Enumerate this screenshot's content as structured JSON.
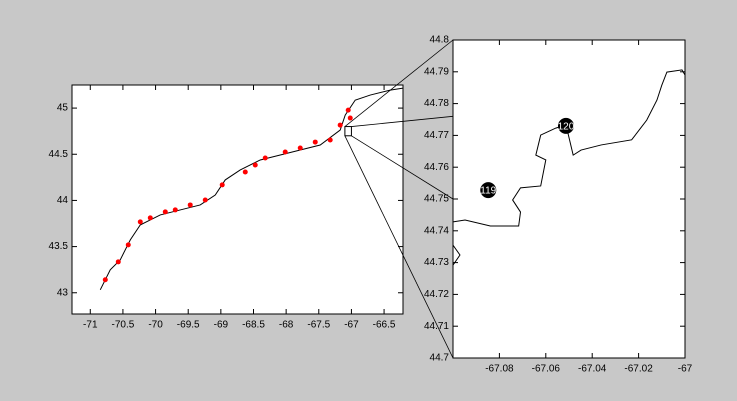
{
  "chart_data": [
    {
      "type": "line",
      "xlim": [
        -71.28,
        -66.21
      ],
      "ylim": [
        42.77,
        45.25
      ],
      "xticks": [
        -71,
        -70.5,
        -70,
        -69.5,
        -69,
        -68.5,
        -68,
        -67.5,
        -67,
        -66.5
      ],
      "yticks": [
        43,
        43.5,
        44,
        44.5,
        45
      ],
      "series": [
        {
          "mode": "line",
          "color": "#000000",
          "x": [
            -70.847,
            -70.694,
            -70.541,
            -70.387,
            -70.234,
            -69.928,
            -69.622,
            -69.316,
            -69.086,
            -68.933,
            -68.703,
            -68.397,
            -68.09,
            -67.784,
            -67.478,
            -67.172,
            -67.095,
            -66.942,
            -66.712,
            -66.406,
            -66.207
          ],
          "y": [
            43.032,
            43.249,
            43.357,
            43.573,
            43.735,
            43.843,
            43.897,
            43.951,
            44.059,
            44.222,
            44.33,
            44.438,
            44.492,
            44.546,
            44.6,
            44.762,
            44.924,
            45.086,
            45.141,
            45.195,
            45.216
          ]
        },
        {
          "mode": "markers",
          "color": "#ff0000",
          "x": [
            -70.77,
            -70.571,
            -70.418,
            -70.234,
            -70.081,
            -69.851,
            -69.698,
            -69.469,
            -69.239,
            -68.979,
            -68.626,
            -68.473,
            -68.32,
            -68.014,
            -67.784,
            -67.554,
            -67.325,
            -67.172,
            -67.049,
            -67.018
          ],
          "y": [
            43.141,
            43.335,
            43.519,
            43.768,
            43.811,
            43.876,
            43.897,
            43.951,
            44.005,
            44.168,
            44.308,
            44.384,
            44.459,
            44.524,
            44.568,
            44.632,
            44.654,
            44.816,
            44.978,
            44.892
          ]
        }
      ]
    },
    {
      "type": "line",
      "xlim": [
        -67.1,
        -67
      ],
      "ylim": [
        44.7,
        44.8
      ],
      "xticks": [
        -67.08,
        -67.06,
        -67.04,
        -67.02,
        -67
      ],
      "yticks": [
        44.7,
        44.71,
        44.72,
        44.73,
        44.74,
        44.75,
        44.76,
        44.77,
        44.78,
        44.79,
        44.8
      ],
      "series": [
        {
          "mode": "line",
          "color": "#000000",
          "x": [
            -67.1,
            -67.0948,
            -67.0839,
            -67.0717,
            -67.0709,
            -67.0743,
            -67.0709,
            -67.0622,
            -67.06,
            -67.0643,
            -67.0622,
            -67.0557,
            -67.0513,
            -67.0482,
            -67.0448,
            -67.0361,
            -67.023,
            -67.0165,
            -67.0121,
            -67.01,
            -67.0078,
            -67.0013,
            -67.0,
            null,
            -67.1,
            -67.097,
            -67.1
          ],
          "y": [
            44.7428,
            44.7434,
            44.7415,
            44.7415,
            44.7459,
            44.7497,
            44.7535,
            44.7541,
            44.7623,
            44.7638,
            44.7701,
            44.7723,
            44.7733,
            44.7638,
            44.7654,
            44.767,
            44.7686,
            44.7748,
            44.7811,
            44.7858,
            44.7899,
            44.7906,
            44.789,
            null,
            44.7355,
            44.7324,
            44.7292
          ]
        },
        {
          "mode": "labeled",
          "color": "#000000",
          "x": [
            -67.0848,
            -67.0513
          ],
          "y": [
            44.7528,
            44.773
          ],
          "labels": [
            "119",
            "120"
          ]
        }
      ]
    }
  ]
}
